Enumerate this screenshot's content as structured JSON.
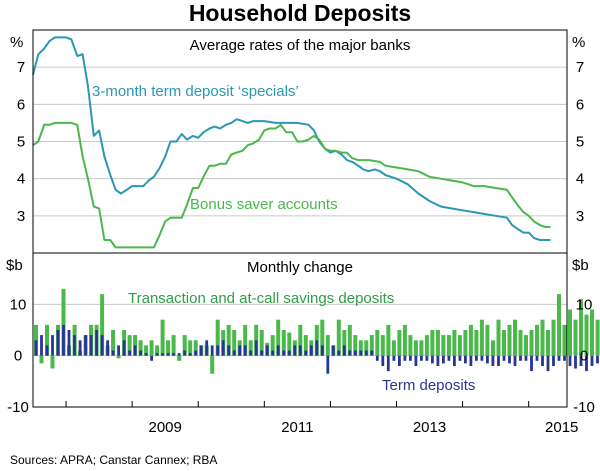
{
  "title": "Household Deposits",
  "source": "Sources:   APRA; Canstar Cannex; RBA",
  "chart_data": [
    {
      "type": "line",
      "title": "Average rates of the major banks",
      "ylabel_left": "%",
      "ylabel_right": "%",
      "ylim": [
        2,
        8
      ],
      "yticks": [
        3,
        4,
        5,
        6,
        7
      ],
      "x_ticks": [
        "2009",
        "2011",
        "2013",
        "2015"
      ],
      "series": [
        {
          "name": "3-month term deposit ‘specials’",
          "color": "#2a97b3",
          "points": [
            [
              2007.5,
              6.8
            ],
            [
              2007.58,
              7.35
            ],
            [
              2007.67,
              7.5
            ],
            [
              2007.75,
              7.7
            ],
            [
              2007.83,
              7.8
            ],
            [
              2007.92,
              7.8
            ],
            [
              2008.0,
              7.8
            ],
            [
              2008.08,
              7.75
            ],
            [
              2008.17,
              7.3
            ],
            [
              2008.25,
              7.35
            ],
            [
              2008.33,
              6.5
            ],
            [
              2008.42,
              5.15
            ],
            [
              2008.5,
              5.3
            ],
            [
              2008.58,
              4.6
            ],
            [
              2008.67,
              4.1
            ],
            [
              2008.75,
              3.7
            ],
            [
              2008.83,
              3.6
            ],
            [
              2008.92,
              3.7
            ],
            [
              2009.0,
              3.8
            ],
            [
              2009.08,
              3.8
            ],
            [
              2009.17,
              3.8
            ],
            [
              2009.25,
              3.95
            ],
            [
              2009.33,
              4.05
            ],
            [
              2009.42,
              4.3
            ],
            [
              2009.5,
              4.6
            ],
            [
              2009.58,
              5.0
            ],
            [
              2009.67,
              5.0
            ],
            [
              2009.75,
              5.2
            ],
            [
              2009.83,
              5.05
            ],
            [
              2009.92,
              5.15
            ],
            [
              2010.0,
              5.1
            ],
            [
              2010.08,
              5.25
            ],
            [
              2010.17,
              5.35
            ],
            [
              2010.25,
              5.4
            ],
            [
              2010.33,
              5.35
            ],
            [
              2010.42,
              5.45
            ],
            [
              2010.5,
              5.5
            ],
            [
              2010.58,
              5.6
            ],
            [
              2010.67,
              5.55
            ],
            [
              2010.75,
              5.5
            ],
            [
              2010.83,
              5.55
            ],
            [
              2010.92,
              5.55
            ],
            [
              2011.0,
              5.55
            ],
            [
              2011.17,
              5.5
            ],
            [
              2011.33,
              5.5
            ],
            [
              2011.5,
              5.5
            ],
            [
              2011.67,
              5.45
            ],
            [
              2011.75,
              5.3
            ],
            [
              2011.83,
              5.0
            ],
            [
              2011.92,
              4.8
            ],
            [
              2012.0,
              4.7
            ],
            [
              2012.08,
              4.75
            ],
            [
              2012.17,
              4.65
            ],
            [
              2012.25,
              4.5
            ],
            [
              2012.33,
              4.45
            ],
            [
              2012.42,
              4.35
            ],
            [
              2012.5,
              4.25
            ],
            [
              2012.58,
              4.2
            ],
            [
              2012.67,
              4.25
            ],
            [
              2012.75,
              4.2
            ],
            [
              2012.83,
              4.1
            ],
            [
              2013.0,
              4.0
            ],
            [
              2013.17,
              3.85
            ],
            [
              2013.33,
              3.6
            ],
            [
              2013.5,
              3.4
            ],
            [
              2013.67,
              3.25
            ],
            [
              2013.83,
              3.2
            ],
            [
              2014.0,
              3.15
            ],
            [
              2014.17,
              3.1
            ],
            [
              2014.33,
              3.05
            ],
            [
              2014.5,
              3.0
            ],
            [
              2014.67,
              2.95
            ],
            [
              2014.75,
              2.75
            ],
            [
              2014.83,
              2.65
            ],
            [
              2014.92,
              2.55
            ],
            [
              2015.0,
              2.55
            ],
            [
              2015.08,
              2.4
            ],
            [
              2015.17,
              2.35
            ],
            [
              2015.25,
              2.35
            ],
            [
              2015.33,
              2.35
            ]
          ]
        },
        {
          "name": "Bonus saver accounts",
          "color": "#4ab84a",
          "points": [
            [
              2007.5,
              4.9
            ],
            [
              2007.58,
              5.0
            ],
            [
              2007.67,
              5.45
            ],
            [
              2007.75,
              5.45
            ],
            [
              2007.83,
              5.5
            ],
            [
              2008.0,
              5.5
            ],
            [
              2008.08,
              5.5
            ],
            [
              2008.17,
              5.45
            ],
            [
              2008.25,
              4.6
            ],
            [
              2008.33,
              4.0
            ],
            [
              2008.42,
              3.25
            ],
            [
              2008.5,
              3.2
            ],
            [
              2008.58,
              2.35
            ],
            [
              2008.67,
              2.35
            ],
            [
              2008.75,
              2.15
            ],
            [
              2008.92,
              2.15
            ],
            [
              2009.08,
              2.15
            ],
            [
              2009.25,
              2.15
            ],
            [
              2009.33,
              2.15
            ],
            [
              2009.42,
              2.5
            ],
            [
              2009.5,
              2.85
            ],
            [
              2009.58,
              2.95
            ],
            [
              2009.67,
              2.95
            ],
            [
              2009.75,
              2.95
            ],
            [
              2009.83,
              3.3
            ],
            [
              2009.92,
              3.75
            ],
            [
              2010.0,
              3.75
            ],
            [
              2010.08,
              4.05
            ],
            [
              2010.17,
              4.35
            ],
            [
              2010.25,
              4.35
            ],
            [
              2010.33,
              4.4
            ],
            [
              2010.42,
              4.4
            ],
            [
              2010.5,
              4.65
            ],
            [
              2010.58,
              4.7
            ],
            [
              2010.67,
              4.75
            ],
            [
              2010.75,
              4.9
            ],
            [
              2010.83,
              4.95
            ],
            [
              2010.92,
              5.05
            ],
            [
              2011.0,
              5.3
            ],
            [
              2011.08,
              5.35
            ],
            [
              2011.17,
              5.35
            ],
            [
              2011.25,
              5.45
            ],
            [
              2011.33,
              5.25
            ],
            [
              2011.42,
              5.25
            ],
            [
              2011.5,
              5.0
            ],
            [
              2011.58,
              5.0
            ],
            [
              2011.67,
              5.05
            ],
            [
              2011.75,
              5.15
            ],
            [
              2011.83,
              5.05
            ],
            [
              2011.92,
              4.8
            ],
            [
              2012.0,
              4.75
            ],
            [
              2012.08,
              4.75
            ],
            [
              2012.17,
              4.7
            ],
            [
              2012.25,
              4.7
            ],
            [
              2012.33,
              4.55
            ],
            [
              2012.42,
              4.5
            ],
            [
              2012.58,
              4.5
            ],
            [
              2012.75,
              4.45
            ],
            [
              2012.83,
              4.35
            ],
            [
              2013.0,
              4.3
            ],
            [
              2013.17,
              4.25
            ],
            [
              2013.33,
              4.2
            ],
            [
              2013.5,
              4.05
            ],
            [
              2013.67,
              4.0
            ],
            [
              2013.83,
              3.95
            ],
            [
              2014.0,
              3.9
            ],
            [
              2014.17,
              3.8
            ],
            [
              2014.33,
              3.8
            ],
            [
              2014.5,
              3.75
            ],
            [
              2014.67,
              3.7
            ],
            [
              2014.75,
              3.5
            ],
            [
              2014.83,
              3.3
            ],
            [
              2014.92,
              3.1
            ],
            [
              2015.0,
              3.0
            ],
            [
              2015.08,
              2.85
            ],
            [
              2015.17,
              2.75
            ],
            [
              2015.25,
              2.7
            ],
            [
              2015.33,
              2.7
            ]
          ]
        }
      ]
    },
    {
      "type": "bar",
      "title": "Monthly change",
      "ylabel_left": "$b",
      "ylabel_right": "$b",
      "ylim": [
        -10,
        20
      ],
      "yticks": [
        -10,
        0,
        10
      ],
      "x_ticks": [
        "2009",
        "2011",
        "2013",
        "2015"
      ],
      "x_start": 2007.5,
      "x_step": 0.0833,
      "series": [
        {
          "name": "Transaction and at-call savings deposits",
          "color": "#4ab84a",
          "values": [
            6,
            -1.5,
            6,
            -2.5,
            6,
            13,
            2,
            6,
            1,
            4,
            6,
            6,
            12,
            2,
            5,
            -0.5,
            5,
            4,
            4,
            3,
            2,
            3,
            2,
            7,
            3,
            4,
            -1,
            4,
            3,
            3,
            2,
            2,
            -3.5,
            7,
            5,
            6,
            5,
            3,
            6,
            3,
            6,
            5,
            2.5,
            4,
            7,
            5,
            4.5,
            3,
            6,
            4,
            3,
            6,
            7,
            4,
            2,
            7,
            5,
            6,
            4,
            3,
            3,
            4,
            5,
            4,
            6,
            3,
            5,
            6,
            4,
            3,
            3,
            4,
            5,
            5,
            4,
            4,
            5,
            4,
            5,
            6,
            5,
            7,
            6,
            3,
            7,
            5,
            6,
            7,
            5,
            4,
            5,
            6,
            7,
            5,
            7,
            12,
            6,
            9,
            7,
            11,
            8,
            9,
            7,
            9
          ]
        },
        {
          "name": "Term deposits",
          "color": "#283593",
          "values": [
            3,
            4,
            2,
            4,
            5,
            6,
            5,
            4,
            3,
            4,
            4,
            5,
            4,
            3,
            1,
            2,
            3,
            1,
            2,
            1,
            0.5,
            -1,
            0.5,
            0.5,
            0.5,
            0.5,
            0.5,
            1,
            0.5,
            1,
            2,
            3,
            2,
            2,
            3,
            2,
            1,
            2,
            2,
            1,
            3,
            1,
            2,
            1,
            2,
            1,
            1,
            2,
            2,
            1,
            2,
            3,
            2,
            -3.5,
            2,
            1,
            2,
            1,
            1,
            1,
            1,
            1,
            -1,
            -2,
            -3,
            -1,
            -2,
            -1,
            -1,
            -2,
            -1,
            -1,
            -1.5,
            -2,
            -1.5,
            -1,
            -2,
            -1,
            -1.5,
            -2,
            -1,
            -1,
            -1.5,
            -2,
            -2,
            -1,
            -1.5,
            -2,
            -1,
            -1,
            -3,
            -1,
            -2,
            -3,
            -2,
            -1,
            -1,
            -2,
            -2.5,
            -2,
            -3,
            -2,
            -1.5,
            -1
          ]
        }
      ]
    }
  ]
}
